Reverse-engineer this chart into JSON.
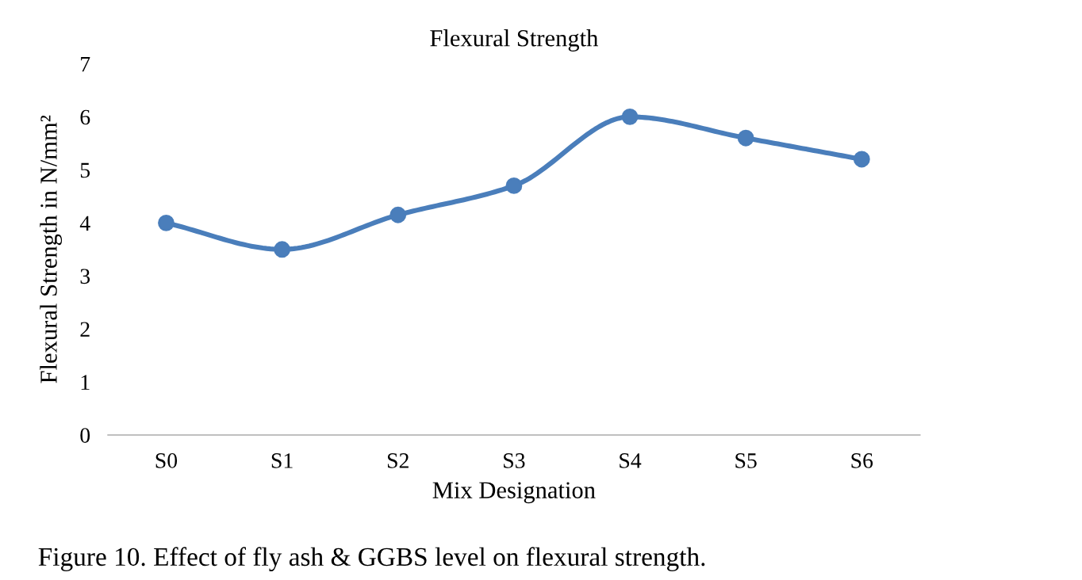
{
  "chart_data": {
    "type": "line",
    "title": "Flexural Strength",
    "xlabel": "Mix Designation",
    "ylabel": "Flexural Strength in N/mm²",
    "categories": [
      "S0",
      "S1",
      "S2",
      "S3",
      "S4",
      "S5",
      "S6"
    ],
    "series": [
      {
        "color": "#4a7ebb",
        "values": [
          4.0,
          3.5,
          4.15,
          4.7,
          6.0,
          5.6,
          5.2
        ]
      }
    ],
    "ylim": [
      0,
      7
    ],
    "yticks": [
      0,
      1,
      2,
      3,
      4,
      5,
      6,
      7
    ],
    "grid": false,
    "legend": false,
    "marker": "circle",
    "line_style": "solid",
    "annotations": [
      "Figure 10. Effect of fly ash & GGBS level on flexural strength."
    ]
  }
}
